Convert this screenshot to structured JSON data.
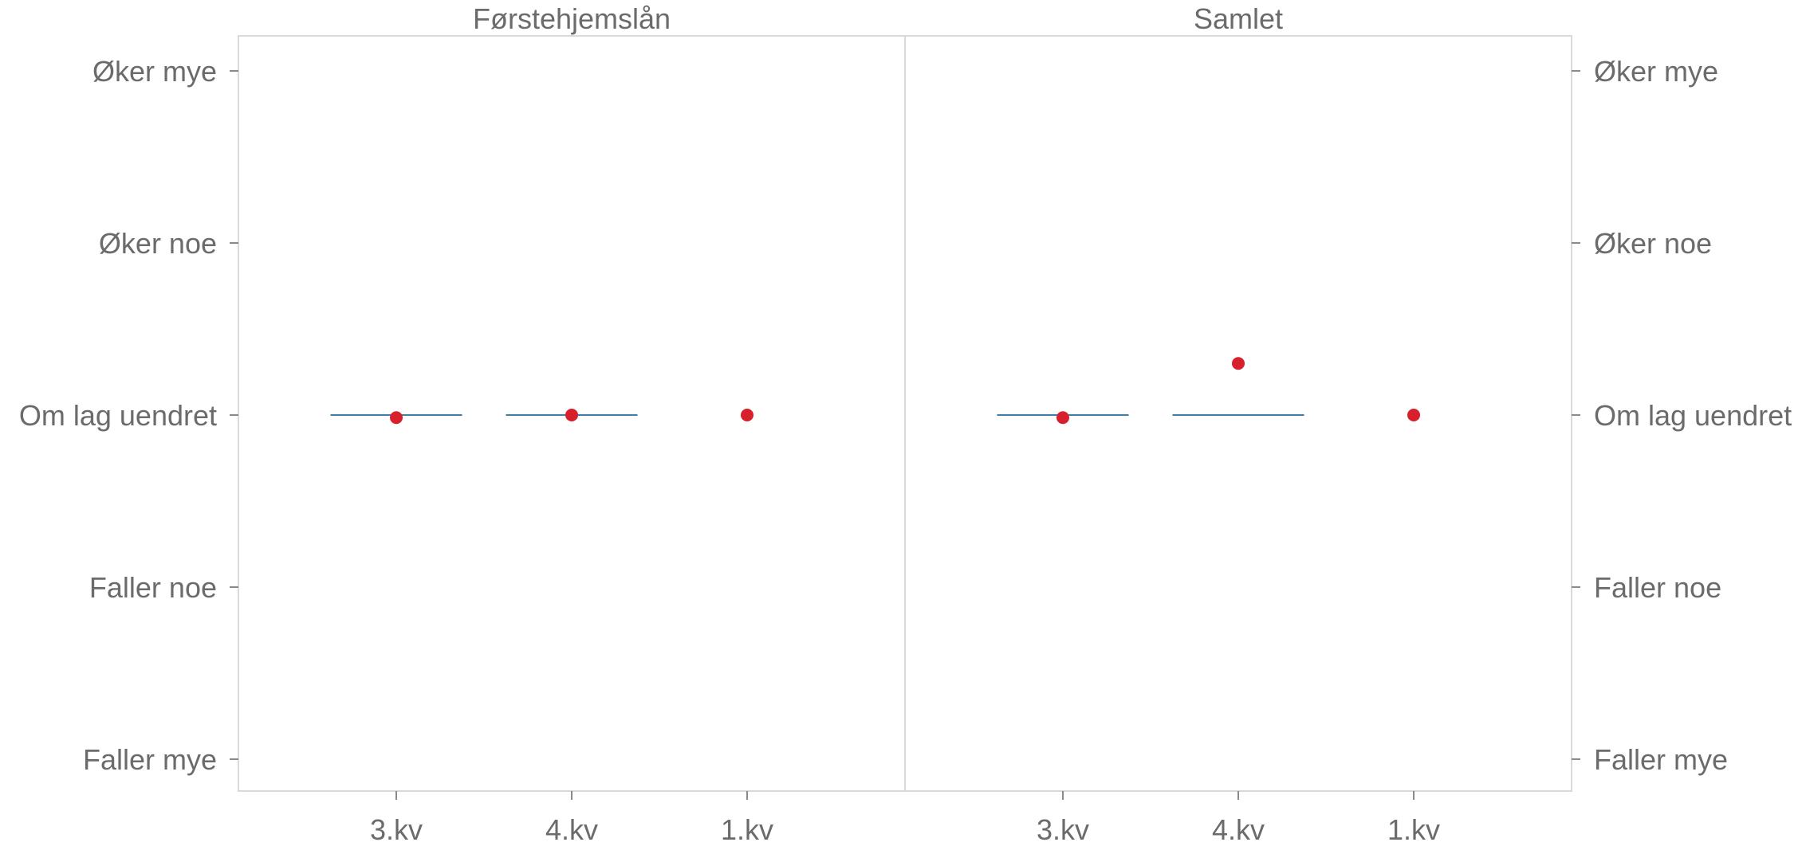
{
  "chart_data": {
    "type": "scatter",
    "ylim": [
      -2,
      2
    ],
    "y_tick_values": [
      2,
      1,
      0,
      -1,
      -2
    ],
    "y_tick_labels": [
      "Øker mye",
      "Øker noe",
      "Om lag uendret",
      "Faller noe",
      "Faller mye"
    ],
    "grid": false,
    "colors": {
      "point": "#d7202b",
      "bar": "#3d7fa6",
      "axis": "#d9d9d9",
      "text": "#6b6b6b"
    },
    "panels": [
      {
        "title": "Førstehjemslån",
        "categories": [
          "3.kv",
          "4.kv",
          "1.kv"
        ],
        "bar_values": [
          0,
          0,
          null
        ],
        "point_values": [
          -0.015,
          0,
          0
        ]
      },
      {
        "title": "Samlet",
        "categories": [
          "3.kv",
          "4.kv",
          "1.kv"
        ],
        "bar_values": [
          0,
          0,
          null
        ],
        "point_values": [
          -0.015,
          0.3,
          0
        ]
      }
    ]
  }
}
